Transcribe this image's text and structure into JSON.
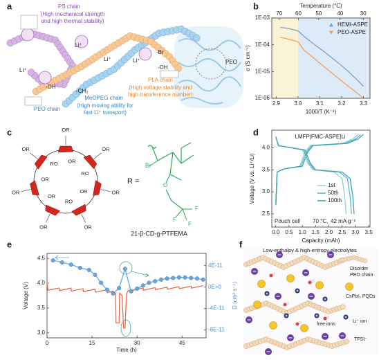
{
  "figure": {
    "panel_labels": [
      "a",
      "b",
      "c",
      "d",
      "e",
      "f"
    ],
    "a": {
      "ps_chain": "PS chain",
      "ps_desc": [
        "(High mechanical strength",
        "and high thermal stability)"
      ],
      "li_labels": [
        "Li⁺",
        "Li⁺",
        "Li⁺",
        "Li⁺"
      ],
      "br": "-Br",
      "oh": [
        "-OH",
        "-OH"
      ],
      "peo": "PEO",
      "pla_chain": "PLA chain",
      "pla_desc": [
        "(High voltage stability and",
        "high transference number)"
      ],
      "peo_chain": "PEO chain",
      "meopeg_chain": "MeOPEG chain",
      "meopeg_desc": [
        "(High moving ability for",
        "fast Li⁺ transport)"
      ],
      "ch3": "-CH₃"
    },
    "c": {
      "ring_labels": [
        "OR",
        "OR",
        "OR",
        "OR",
        "OR",
        "OR",
        "OR",
        "OR",
        "RO",
        "OR",
        "RO",
        "OR",
        "OR",
        "RO"
      ],
      "r_equals": "R =",
      "r_atoms": [
        "Br",
        "O",
        "F",
        "F",
        "F"
      ],
      "name": "21-β-CD-g-PTFEMA"
    },
    "f": {
      "title": "Low-enthalpy & high-entropy electrolytes",
      "peo": [
        "Disorder",
        "PEO chain"
      ],
      "pqds": "CsPbI₃ PQDs",
      "li": "Li⁺ ion",
      "tfsi": "TFSI⁻",
      "free_ions": "free ions"
    }
  },
  "chart_data": [
    {
      "type": "line",
      "x_label": "1000/T (K⁻¹)",
      "y_label": "σ (S cm⁻¹)",
      "x2_label": "Temperature (°C)",
      "xlim": [
        2.88,
        3.33
      ],
      "xticks": [
        2.9,
        {
          "value": 3,
          "label": "3.0"
        },
        3.1,
        3.2,
        3.3
      ],
      "x2ticks": [
        {
          "value": 2.914,
          "label": "70"
        },
        {
          "value": 3.002,
          "label": "60"
        },
        {
          "value": 3.095,
          "label": "50"
        },
        {
          "value": 3.193,
          "label": "40"
        },
        {
          "value": 3.299,
          "label": "30"
        }
      ],
      "ylim": [
        1e-06,
        0.001
      ],
      "log_y": true,
      "yticks": [
        {
          "value": 1e-06,
          "label": "1E-06"
        },
        {
          "value": 1e-05,
          "label": "1E-05"
        },
        {
          "value": 0.0001,
          "label": "1E-04"
        },
        {
          "value": 0.001,
          "label": "1E-03"
        }
      ],
      "shading": [
        "#fbf3d6",
        "#dcebf7"
      ],
      "legend": "upper right",
      "series": [
        {
          "name": "HEMI-ASPE",
          "color": "#7f9fc9",
          "marker": "triangle-up",
          "x": [
            2.92,
            2.96,
            3.0,
            3.03,
            3.07,
            3.12,
            3.17,
            3.22,
            3.27,
            3.3
          ],
          "values": [
            0.00045,
            0.0004,
            0.00033,
            0.0002,
            0.00011,
            5.5e-05,
            2.6e-05,
            1.2e-05,
            5e-06,
            2.8e-06
          ]
        },
        {
          "name": "PEO-ASPE",
          "color": "#f0a050",
          "marker": "triangle-down",
          "x": [
            2.92,
            2.96,
            3.0,
            3.03,
            3.07,
            3.12,
            3.17,
            3.22,
            3.27,
            3.3
          ],
          "values": [
            0.00019,
            0.00016,
            0.00013,
            6e-05,
            3.3e-05,
            1.5e-05,
            7e-06,
            3.3e-06,
            1.6e-06,
            1e-06
          ]
        }
      ]
    },
    {
      "type": "line",
      "x_label": "Capacity (mAh)",
      "y_label": "Voltage (V vs. Li⁺/Li)",
      "annotations": [
        "LMFP|FMC-ASPE|Li",
        "Pouch cell",
        "70 °C,",
        "42 mA g⁻¹"
      ],
      "xlim": [
        -0.15,
        3.55
      ],
      "xticks": [
        {
          "value": 0,
          "label": "0.0"
        },
        0.5,
        {
          "value": 1,
          "label": "1.0"
        },
        1.5,
        {
          "value": 2,
          "label": "2.0"
        },
        2.5,
        {
          "value": 3,
          "label": "3.0"
        },
        3.5
      ],
      "ylim": [
        2.2,
        4.4
      ],
      "yticks": [
        2.5,
        {
          "value": 3,
          "label": "3.0"
        },
        3.5,
        {
          "value": 4,
          "label": "4.0"
        }
      ],
      "legend": "center",
      "series": [
        {
          "color": "#8fd3d0",
          "x": [
            0,
            0.05,
            0.3,
            0.9,
            1.1,
            1.3,
            2.5,
            2.9,
            3.1
          ],
          "values": [
            2.7,
            3.45,
            3.52,
            3.58,
            3.9,
            4.05,
            4.1,
            4.2,
            4.3
          ]
        },
        {
          "color": "#5bb8c4",
          "x": [
            0,
            0.05,
            0.3,
            0.95,
            1.15,
            1.35,
            2.6,
            3.0,
            3.2
          ],
          "values": [
            2.7,
            3.45,
            3.52,
            3.58,
            3.9,
            4.05,
            4.1,
            4.2,
            4.3
          ]
        },
        {
          "color": "#3a9fb0",
          "x": [
            0,
            0.05,
            0.3,
            1.0,
            1.2,
            1.4,
            2.7,
            3.1,
            3.3
          ],
          "values": [
            2.7,
            3.45,
            3.52,
            3.58,
            3.9,
            4.05,
            4.1,
            4.2,
            4.3
          ]
        },
        {
          "name": "1st",
          "color": "#8fd3d0",
          "x": [
            0,
            0.1,
            0.6,
            1.0,
            1.2,
            1.4,
            2.2,
            2.5,
            2.6,
            2.65
          ],
          "values": [
            4.25,
            4.05,
            4.0,
            3.95,
            3.65,
            3.5,
            3.45,
            3.3,
            2.9,
            2.5
          ]
        },
        {
          "name": "50th",
          "color": "#5bb8c4",
          "x": [
            0,
            0.1,
            0.6,
            1.05,
            1.25,
            1.45,
            2.4,
            2.7,
            2.8,
            2.85
          ],
          "values": [
            4.25,
            4.05,
            4.0,
            3.95,
            3.65,
            3.5,
            3.45,
            3.3,
            2.9,
            2.5
          ]
        },
        {
          "name": "100th",
          "color": "#3a9fb0",
          "x": [
            0,
            0.1,
            0.6,
            1.1,
            1.3,
            1.5,
            2.5,
            2.8,
            2.9,
            2.95
          ],
          "values": [
            4.25,
            4.05,
            4.0,
            3.95,
            3.65,
            3.5,
            3.45,
            3.3,
            2.9,
            2.5
          ]
        }
      ]
    },
    {
      "type": "line",
      "x_label": "Time (h)",
      "y_label": "Voltage (V)",
      "y2_label": "D (cm² s⁻¹)",
      "y2_color": "#4f8fd0",
      "xlim": [
        0,
        53
      ],
      "xticks": [
        0,
        15,
        30,
        45
      ],
      "ylim": [
        2.9,
        4.6
      ],
      "yticks": [
        {
          "value": 3,
          "label": "3.0"
        },
        3.5,
        {
          "value": 4,
          "label": "4.0"
        },
        4.5
      ],
      "y2lim": [
        -9.5e-11,
        6.3e-11
      ],
      "y2ticks": [
        {
          "value": -8e-11,
          "label": "-8E-11"
        },
        {
          "value": -4e-11,
          "label": "-4E-11"
        },
        {
          "value": 0,
          "label": "0E+0"
        },
        {
          "value": 4e-11,
          "label": "4E-11"
        }
      ],
      "series": [
        {
          "color": "#ec6a4c",
          "x": [
            0,
            0.3,
            4,
            4.1,
            8,
            8.1,
            12,
            12.1,
            16,
            16.1,
            20,
            20.1,
            22,
            22.1,
            22.8,
            23,
            24,
            24.2,
            25,
            25.5,
            26,
            26.5,
            27,
            28,
            32,
            32.1,
            36,
            36.1,
            40,
            40.1,
            44,
            44.1,
            48,
            48.1,
            52
          ],
          "values": [
            4.02,
            3.86,
            3.9,
            3.85,
            3.9,
            3.84,
            3.89,
            3.83,
            3.88,
            3.82,
            3.87,
            3.81,
            3.84,
            3.78,
            3.8,
            3.2,
            3.2,
            3.8,
            3.75,
            3.1,
            3.1,
            3.78,
            3.85,
            3.86,
            3.9,
            3.86,
            3.91,
            3.87,
            3.92,
            3.88,
            3.93,
            3.89,
            3.94,
            3.9,
            3.95
          ]
        },
        {
          "color": "#6aa6dc",
          "axis": "y2",
          "markers": true,
          "x": [
            2,
            5,
            8,
            11,
            14,
            16,
            18,
            20,
            22,
            24,
            26,
            28,
            30,
            32,
            34,
            36,
            38,
            40,
            42,
            44,
            46,
            48,
            50,
            52
          ],
          "values": [
            5e-11,
            4.6e-11,
            4.2e-11,
            3.6e-11,
            3.2e-11,
            2.3e-11,
            8e-12,
            -5e-12,
            -1.2e-11,
            -2e-12,
            3.4e-11,
            -8e-12,
            -3e-12,
            3e-12,
            8e-12,
            1.1e-11,
            1.4e-11,
            1.6e-11,
            1.7e-11,
            1.8e-11,
            1.8e-11,
            1.7e-11,
            1.6e-11,
            1.4e-11
          ]
        }
      ]
    }
  ]
}
